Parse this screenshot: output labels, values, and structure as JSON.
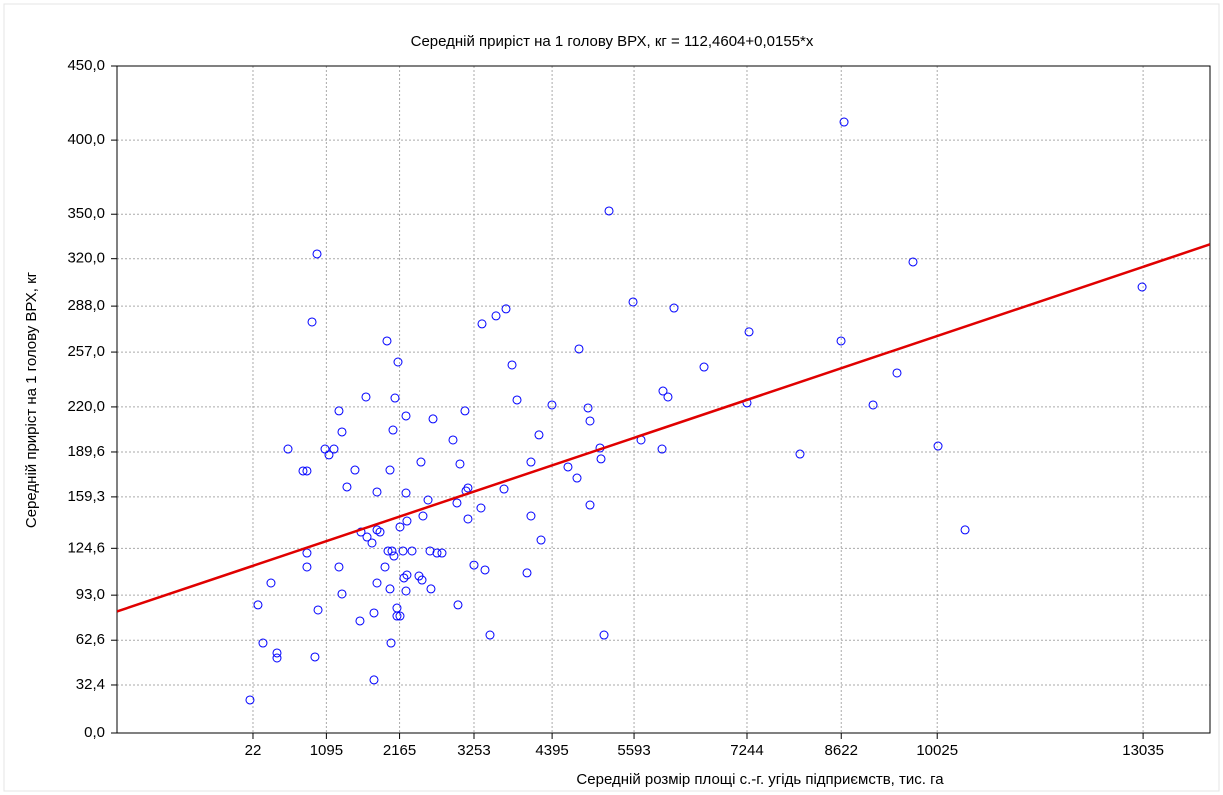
{
  "chart_data": {
    "type": "scatter",
    "title": "Середній приріст на 1 голову ВРХ, кг = 112,4604+0,0155*x",
    "x_label": "Середній розмір площі с.-г. угідь підприємств, тис. га",
    "y_label": "Середній приріст на 1 голову ВРХ, кг",
    "trendline": {
      "intercept": 112.4604,
      "slope": 0.0155,
      "color": "#e00000"
    },
    "xlim": [
      -1966,
      14013
    ],
    "ylim": [
      0,
      450
    ],
    "xticks": [
      22,
      1095,
      2165,
      3253,
      4395,
      5593,
      7244,
      8622,
      10025,
      13035
    ],
    "yticks": [
      {
        "value": 0,
        "label": "0,0"
      },
      {
        "value": 32.4,
        "label": "32,4"
      },
      {
        "value": 62.6,
        "label": "62,6"
      },
      {
        "value": 93,
        "label": "93,0"
      },
      {
        "value": 124.6,
        "label": "124,6"
      },
      {
        "value": 159.3,
        "label": "159,3"
      },
      {
        "value": 189.6,
        "label": "189,6"
      },
      {
        "value": 220,
        "label": "220,0"
      },
      {
        "value": 257,
        "label": "257,0"
      },
      {
        "value": 288,
        "label": "288,0"
      },
      {
        "value": 320,
        "label": "320,0"
      },
      {
        "value": 350,
        "label": "350,0"
      },
      {
        "value": 400,
        "label": "400,0"
      },
      {
        "value": 450,
        "label": "450,0"
      }
    ],
    "grid": true,
    "color": "#0000ff",
    "x": [
      -22,
      95,
      168,
      285,
      373,
      373,
      534,
      753,
      811,
      811,
      811,
      885,
      928,
      958,
      973,
      1075,
      1133,
      1206,
      1279,
      1279,
      1323,
      1323,
      1396,
      1513,
      1586,
      1601,
      1674,
      1689,
      1762,
      1791,
      1791,
      1835,
      1835,
      1835,
      1879,
      1952,
      1981,
      1996,
      2025,
      2025,
      2040,
      2054,
      2069,
      2083,
      2098,
      2127,
      2127,
      2142,
      2171,
      2171,
      2215,
      2229,
      2259,
      2259,
      2259,
      2273,
      2273,
      2347,
      2449,
      2478,
      2493,
      2507,
      2581,
      2610,
      2624,
      2654,
      2712,
      2785,
      2946,
      3004,
      3019,
      3048,
      3121,
      3136,
      3165,
      3165,
      3253,
      3355,
      3370,
      3414,
      3487,
      3575,
      3692,
      3721,
      3809,
      3882,
      4028,
      4086,
      4086,
      4203,
      4233,
      4393,
      4627,
      4759,
      4788,
      4920,
      4949,
      4949,
      5095,
      5110,
      5154,
      5227,
      5578,
      5695,
      6002,
      6016,
      6089,
      6177,
      6616,
      7244,
      7274,
      8019,
      8619,
      8663,
      9087,
      9437,
      9671,
      10037,
      10432,
      13020
    ],
    "values": [
      22.3,
      86.4,
      60.7,
      101.2,
      54.0,
      50.6,
      191.6,
      176.8,
      176.8,
      121.4,
      112.0,
      277.3,
      51.3,
      323.2,
      83.0,
      191.6,
      187.6,
      191.6,
      112.0,
      217.3,
      93.8,
      203.1,
      166.0,
      177.4,
      75.6,
      135.6,
      226.7,
      132.2,
      128.2,
      35.8,
      81.0,
      162.6,
      101.2,
      137.0,
      135.6,
      112.0,
      264.5,
      122.8,
      97.2,
      177.4,
      60.7,
      122.8,
      204.4,
      119.4,
      226.0,
      78.9,
      84.3,
      250.3,
      78.9,
      139.0,
      122.8,
      104.6,
      161.9,
      95.8,
      213.9,
      106.6,
      143.0,
      122.8,
      105.9,
      182.8,
      103.2,
      146.4,
      157.2,
      122.8,
      97.2,
      211.9,
      121.4,
      121.4,
      197.7,
      155.2,
      86.4,
      181.5,
      217.3,
      163.3,
      144.4,
      165.3,
      113.3,
      151.8,
      276.0,
      110.0,
      66.1,
      281.4,
      164.6,
      286.1,
      248.3,
      224.7,
      108.0,
      182.8,
      146.4,
      201.1,
      130.2,
      221.3,
      179.5,
      172.0,
      259.1,
      219.3,
      153.8,
      210.5,
      192.3,
      184.9,
      66.1,
      352.2,
      290.8,
      197.7,
      191.6,
      230.7,
      226.7,
      286.7,
      246.9,
      222.7,
      270.6,
      188.2,
      264.5,
      412.2,
      221.3,
      242.9,
      317.8,
      193.6,
      137.0,
      300.9
    ]
  }
}
